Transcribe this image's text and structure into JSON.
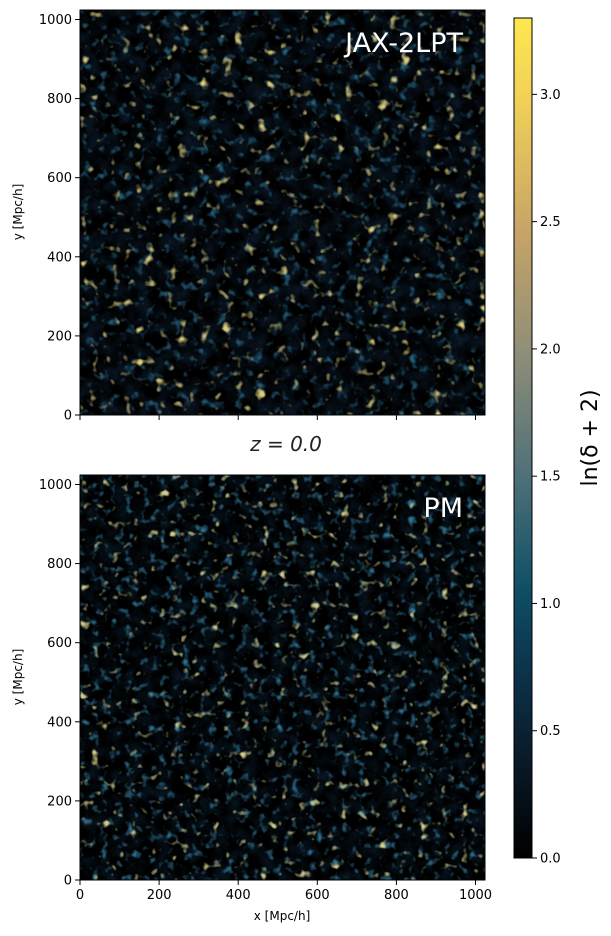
{
  "chart_data": [
    {
      "type": "heatmap",
      "panel_label": "JAX-2LPT",
      "xlabel": "",
      "ylabel": "y [Mpc/h]",
      "xlim": [
        0,
        1024
      ],
      "ylim": [
        0,
        1024
      ],
      "x_ticks": [
        0,
        200,
        400,
        600,
        800,
        1000
      ],
      "y_ticks": [
        0,
        200,
        400,
        600,
        800,
        1000
      ],
      "x_tick_labels_visible": false
    },
    {
      "type": "heatmap",
      "panel_label": "PM",
      "xlabel": "x [Mpc/h]",
      "ylabel": "y [Mpc/h]",
      "xlim": [
        0,
        1024
      ],
      "ylim": [
        0,
        1024
      ],
      "x_ticks": [
        0,
        200,
        400,
        600,
        800,
        1000
      ],
      "y_ticks": [
        0,
        200,
        400,
        600,
        800,
        1000
      ],
      "x_tick_labels_visible": true
    }
  ],
  "shared": {
    "mid_title": "z = 0.0",
    "colorbar": {
      "label": "ln(δ + 2)",
      "range": [
        0,
        3.3
      ],
      "ticks": [
        0.0,
        0.5,
        1.0,
        1.5,
        2.0,
        2.5,
        3.0
      ],
      "tick_labels": [
        "0.0",
        "0.5",
        "1.0",
        "1.5",
        "2.0",
        "2.5",
        "3.0"
      ],
      "colormap": [
        "#000000",
        "#0a1a2a",
        "#0c3a52",
        "#0e4f66",
        "#4d6f78",
        "#8e8e78",
        "#c8a566",
        "#f0d058",
        "#fde84e"
      ]
    }
  }
}
